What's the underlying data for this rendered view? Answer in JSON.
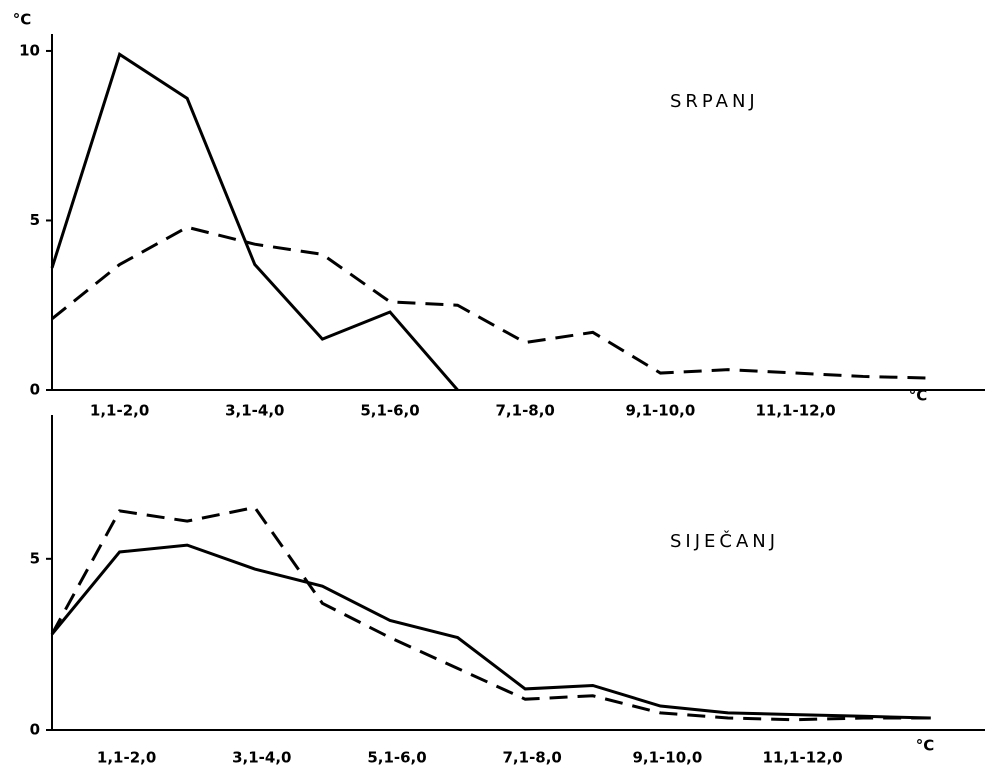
{
  "chart_data": [
    {
      "type": "line",
      "annotation": "SRPANJ",
      "y_label": "°C",
      "x_label": "°C",
      "categories": [
        null,
        "1,1-2,0",
        null,
        "3,1-4,0",
        null,
        "5,1-6,0",
        null,
        "7,1-8,0",
        null,
        "9,1-10,0",
        null,
        "11,1-12,0",
        null,
        null
      ],
      "series": [
        {
          "color": "#000000",
          "style": "solid",
          "values": [
            3.6,
            9.9,
            8.6,
            3.7,
            1.5,
            2.3,
            0,
            null,
            null,
            null,
            null,
            null,
            null,
            null
          ]
        },
        {
          "color": "#000000",
          "style": "dashed",
          "values": [
            2.1,
            3.7,
            4.8,
            4.3,
            4.0,
            2.6,
            2.5,
            1.4,
            1.7,
            0.5,
            0.6,
            0.5,
            0.4,
            0.35
          ]
        }
      ],
      "ylim": [
        0,
        10.5
      ],
      "yticks": [
        0,
        5,
        10
      ]
    },
    {
      "type": "line",
      "annotation": "SIJEČANJ",
      "x_label": "°C",
      "categories": [
        null,
        "1,1-2,0",
        null,
        "3,1-4,0",
        null,
        "5,1-6,0",
        null,
        "7,1-8,0",
        null,
        "9,1-10,0",
        null,
        "11,1-12,0",
        null,
        null
      ],
      "series": [
        {
          "color": "#000000",
          "style": "solid",
          "values": [
            2.8,
            5.2,
            5.4,
            4.7,
            4.2,
            3.2,
            2.7,
            1.2,
            1.3,
            0.7,
            0.5,
            0.45,
            0.4,
            0.35
          ]
        },
        {
          "color": "#000000",
          "style": "dashed",
          "values": [
            2.8,
            6.4,
            6.1,
            6.5,
            3.7,
            2.7,
            1.8,
            0.9,
            1.0,
            0.5,
            0.35,
            0.3,
            0.35,
            0.35
          ]
        }
      ],
      "ylim": [
        0,
        9.2
      ],
      "yticks": [
        0,
        5
      ]
    }
  ]
}
